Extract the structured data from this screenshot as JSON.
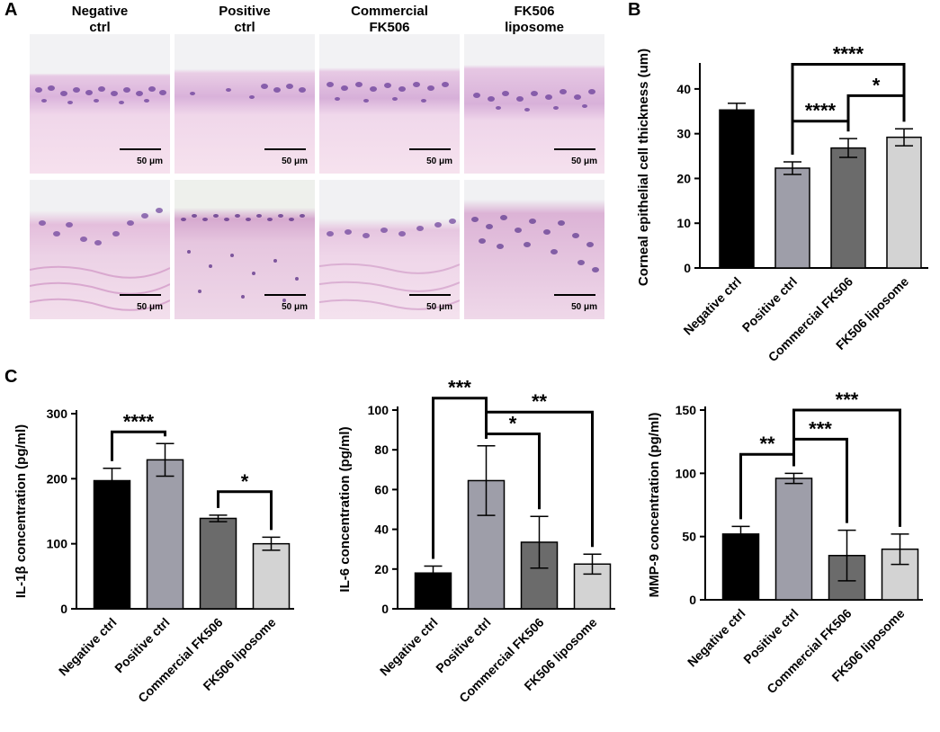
{
  "panels": {
    "a": "A",
    "b": "B",
    "c": "C"
  },
  "columns": [
    {
      "line1": "Negative",
      "line2": "ctrl"
    },
    {
      "line1": "Positive",
      "line2": "ctrl"
    },
    {
      "line1": "Commercial",
      "line2": "FK506"
    },
    {
      "line1": "FK506",
      "line2": "liposome"
    }
  ],
  "scale_bar_label": "50 μm",
  "colors": {
    "negative": "#000000",
    "positive": "#9e9ea9",
    "commercial": "#6b6b6b",
    "liposome": "#d3d3d3",
    "stain_pink": "#f2d6e8",
    "nuclei": "#6a3f9a"
  },
  "chart_data": [
    {
      "id": "thickness",
      "type": "bar",
      "categories": [
        "Negative ctrl",
        "Positive ctrl",
        "Commercial FK506",
        "FK506 liposome"
      ],
      "values": [
        35.3,
        22.3,
        26.8,
        29.2
      ],
      "errors": [
        1.5,
        1.4,
        2.1,
        1.9
      ],
      "ylabel": "Corneal epithelial cell thickness (um)",
      "ylim": [
        0,
        45
      ],
      "yticks": [
        0,
        10,
        20,
        30,
        40
      ],
      "significance": [
        {
          "from": 1,
          "to": 2,
          "label": "****",
          "level": 32.8
        },
        {
          "from": 2,
          "to": 3,
          "label": "*",
          "level": 38.5
        },
        {
          "from": 1,
          "to": 3,
          "label": "****",
          "level": 45.5
        }
      ]
    },
    {
      "id": "il1b",
      "type": "bar",
      "categories": [
        "Negative ctrl",
        "Positive ctrl",
        "Commercial FK506",
        "FK506 liposome"
      ],
      "values": [
        197,
        229,
        139,
        100
      ],
      "errors": [
        19,
        25,
        5,
        10
      ],
      "ylabel": "IL-1β concentration (pg/ml)",
      "ylim": [
        0,
        300
      ],
      "yticks": [
        0,
        100,
        200,
        300
      ],
      "significance": [
        {
          "from": 0,
          "to": 1,
          "label": "****",
          "level": 272
        },
        {
          "from": 2,
          "to": 3,
          "label": "*",
          "level": 180
        }
      ]
    },
    {
      "id": "il6",
      "type": "bar",
      "categories": [
        "Negative ctrl",
        "Positive ctrl",
        "Commercial FK506",
        "FK506 liposome"
      ],
      "values": [
        18,
        64.5,
        33.5,
        22.5
      ],
      "errors": [
        3.5,
        17.5,
        13,
        5
      ],
      "ylabel": "IL-6 concentration (pg/ml)",
      "ylim": [
        0,
        100
      ],
      "yticks": [
        0,
        20,
        40,
        60,
        80,
        100
      ],
      "significance": [
        {
          "from": 0,
          "to": 1,
          "label": "***",
          "level": 106
        },
        {
          "from": 1,
          "to": 2,
          "label": "*",
          "level": 88
        },
        {
          "from": 1,
          "to": 3,
          "label": "**",
          "level": 99
        }
      ]
    },
    {
      "id": "mmp9",
      "type": "bar",
      "categories": [
        "Negative ctrl",
        "Positive ctrl",
        "Commercial FK506",
        "FK506 liposome"
      ],
      "values": [
        52,
        96,
        35,
        40
      ],
      "errors": [
        6,
        4,
        20,
        12
      ],
      "ylabel": "MMP-9 concentration (pg/ml)",
      "ylim": [
        0,
        150
      ],
      "yticks": [
        0,
        50,
        100,
        150
      ],
      "significance": [
        {
          "from": 0,
          "to": 1,
          "label": "**",
          "level": 115
        },
        {
          "from": 1,
          "to": 2,
          "label": "***",
          "level": 127
        },
        {
          "from": 1,
          "to": 3,
          "label": "***",
          "level": 150
        }
      ]
    }
  ]
}
